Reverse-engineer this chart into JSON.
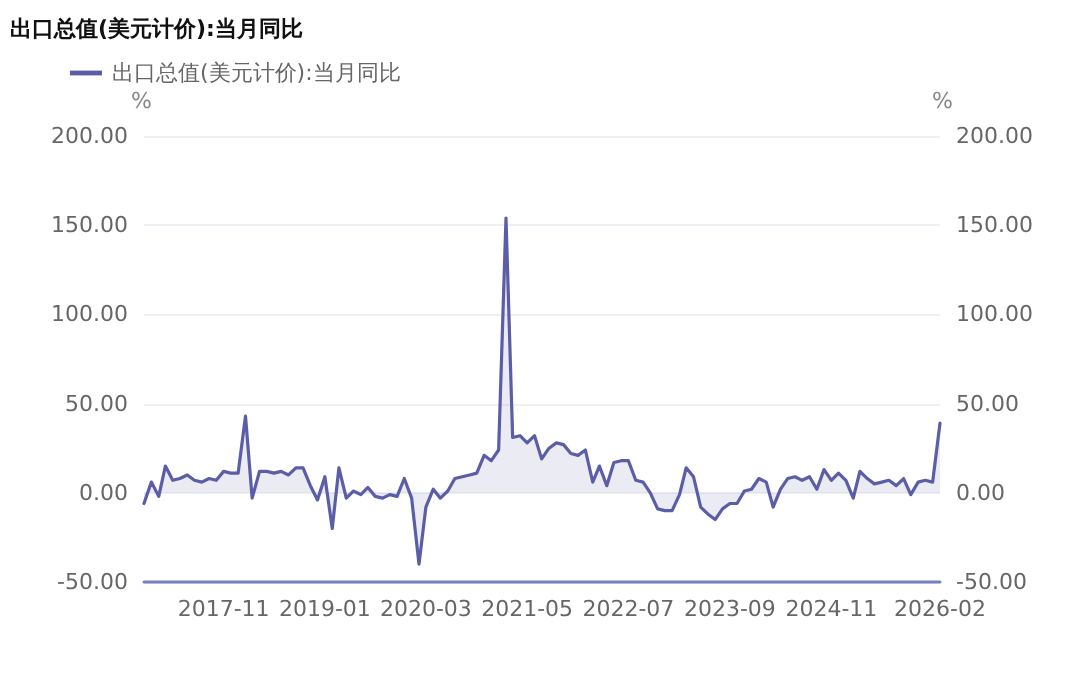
{
  "chart_data": {
    "type": "area",
    "title": "出口总值(美元计价):当月同比",
    "ylabel": "%",
    "y2label": "%",
    "x": [
      "2016-12",
      "2017-01",
      "2017-02",
      "2017-03",
      "2017-04",
      "2017-05",
      "2017-06",
      "2017-07",
      "2017-08",
      "2017-09",
      "2017-10",
      "2017-11",
      "2017-12",
      "2018-01",
      "2018-02",
      "2018-03",
      "2018-04",
      "2018-05",
      "2018-06",
      "2018-07",
      "2018-08",
      "2018-09",
      "2018-10",
      "2018-11",
      "2018-12",
      "2019-01",
      "2019-02",
      "2019-03",
      "2019-04",
      "2019-05",
      "2019-06",
      "2019-07",
      "2019-08",
      "2019-09",
      "2019-10",
      "2019-11",
      "2019-12",
      "2020-01",
      "2020-02",
      "2020-03",
      "2020-04",
      "2020-05",
      "2020-06",
      "2020-07",
      "2020-08",
      "2020-09",
      "2020-10",
      "2020-11",
      "2020-12",
      "2021-01",
      "2021-02",
      "2021-03",
      "2021-04",
      "2021-05",
      "2021-06",
      "2021-07",
      "2021-08",
      "2021-09",
      "2021-10",
      "2021-11",
      "2021-12",
      "2022-01",
      "2022-02",
      "2022-03",
      "2022-04",
      "2022-05",
      "2022-06",
      "2022-07",
      "2022-08",
      "2022-09",
      "2022-10",
      "2022-11",
      "2022-12",
      "2023-01",
      "2023-02",
      "2023-03",
      "2023-04",
      "2023-05",
      "2023-06",
      "2023-07",
      "2023-08",
      "2023-09",
      "2023-10",
      "2023-11",
      "2023-12",
      "2024-01",
      "2024-02",
      "2024-03",
      "2024-04",
      "2024-05",
      "2024-06",
      "2024-07",
      "2024-08",
      "2024-09",
      "2024-10",
      "2024-11",
      "2024-12",
      "2025-01",
      "2025-02",
      "2025-03",
      "2025-04",
      "2025-05",
      "2025-06",
      "2025-07",
      "2025-08",
      "2025-09",
      "2025-10",
      "2025-11",
      "2025-12",
      "2026-01",
      "2026-02"
    ],
    "series": [
      {
        "name": "出口总值(美元计价):当月同比",
        "color": "#5b5ea6",
        "values": [
          -6,
          6,
          -2,
          15,
          7,
          8,
          10,
          7,
          6,
          8,
          7,
          12,
          11,
          11,
          43,
          -3,
          12,
          12,
          11,
          12,
          10,
          14,
          14,
          4,
          -4,
          9,
          -20,
          14,
          -3,
          1,
          -1,
          3,
          -2,
          -3,
          -1,
          -2,
          8,
          -3,
          -40,
          -8,
          2,
          -3,
          1,
          8,
          9,
          10,
          11,
          21,
          18,
          24,
          154,
          31,
          32,
          28,
          32,
          19,
          25,
          28,
          27,
          22,
          21,
          24,
          6,
          15,
          4,
          17,
          18,
          18,
          7,
          6,
          0,
          -9,
          -10,
          -10,
          -1,
          14,
          9,
          -8,
          -12,
          -15,
          -9,
          -6,
          -6,
          1,
          2,
          8,
          6,
          -8,
          2,
          8,
          9,
          7,
          9,
          2,
          13,
          7,
          11,
          7,
          -3,
          12,
          8,
          5,
          6,
          7,
          4,
          8,
          -1,
          6,
          7,
          6,
          39
        ]
      }
    ],
    "xlim": [
      "2016-12",
      "2026-02"
    ],
    "xticks": [
      "2017-11",
      "2019-01",
      "2020-03",
      "2021-05",
      "2022-07",
      "2023-09",
      "2024-11",
      "2026-02"
    ],
    "ylim": [
      -50,
      200
    ],
    "yticks": [
      {
        "value": -50,
        "label": "-50.00"
      },
      {
        "value": 0,
        "label": "0.00"
      },
      {
        "value": 50,
        "label": "50.00"
      },
      {
        "value": 100,
        "label": "100.00"
      },
      {
        "value": 150,
        "label": "150.00"
      },
      {
        "value": 200,
        "label": "200.00"
      }
    ],
    "y2lim": [
      -50,
      200
    ],
    "y2ticks": [
      {
        "value": -50,
        "label": "-50.00"
      },
      {
        "value": 0,
        "label": "0.00"
      },
      {
        "value": 50,
        "label": "50.00"
      },
      {
        "value": 100,
        "label": "100.00"
      },
      {
        "value": 150,
        "label": "150.00"
      },
      {
        "value": 200,
        "label": "200.00"
      }
    ],
    "grid": "y",
    "legend": "top left",
    "marker": "none",
    "line_style": "solid"
  }
}
